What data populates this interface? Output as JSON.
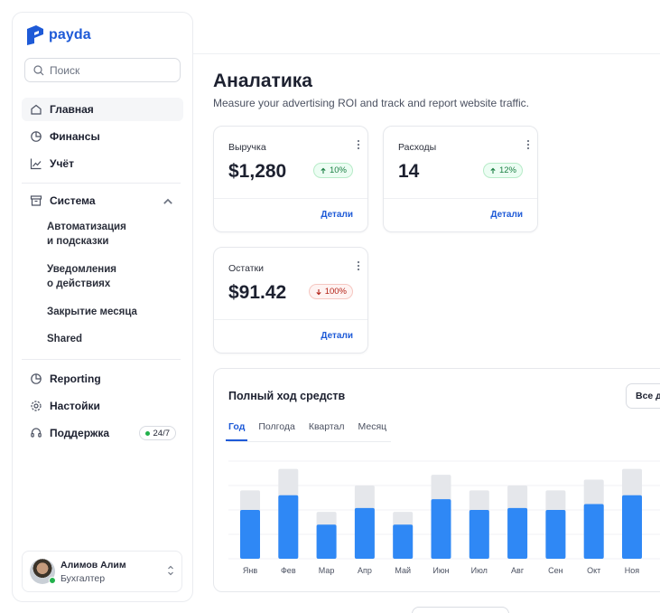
{
  "app": {
    "logo_text": "payda",
    "brand_color": "#1e5ad7"
  },
  "search": {
    "placeholder": "Поиск"
  },
  "sidebar": {
    "items": [
      {
        "label": "Главная",
        "icon": "home-icon",
        "active": true
      },
      {
        "label": "Финансы",
        "icon": "pie-chart-icon"
      },
      {
        "label": "Учёт",
        "icon": "line-chart-icon"
      },
      {
        "label": "Система",
        "icon": "archive-icon",
        "expanded": true
      }
    ],
    "subitems": [
      {
        "label": "Автоматизация\nи подсказки"
      },
      {
        "label": "Уведомления\nо действиях"
      },
      {
        "label": "Закрытие месяца"
      },
      {
        "label": "Shared"
      }
    ],
    "bottom_items": [
      {
        "label": "Reporting",
        "icon": "pie-chart-icon"
      },
      {
        "label": "Настойки",
        "icon": "gear-icon"
      },
      {
        "label": "Поддержка",
        "icon": "headset-icon",
        "badge": "24/7"
      }
    ]
  },
  "user": {
    "name": "Алимов Алим",
    "role": "Бухгалтер",
    "status": "online"
  },
  "main": {
    "title": "Аналатика",
    "subtitle": "Measure your advertising ROI and track and report website traffic."
  },
  "cards": [
    {
      "label": "Выручка",
      "value": "$1,280",
      "change": "10%",
      "direction": "up",
      "link": "Детали"
    },
    {
      "label": "Расходы",
      "value": "14",
      "change": "12%",
      "direction": "up",
      "link": "Детали"
    },
    {
      "label": "Остатки",
      "value": "$91.42",
      "change": "100%",
      "direction": "down",
      "link": "Детали"
    }
  ],
  "cashflow": {
    "title": "Полный ход средств",
    "filter_label": "Все де",
    "tabs": [
      "Год",
      "Полгода",
      "Квартал",
      "Месяц"
    ],
    "active_tab": "Год"
  },
  "chart_data": {
    "type": "bar",
    "categories": [
      "Янв",
      "Фев",
      "Мар",
      "Апр",
      "Май",
      "Июн",
      "Июл",
      "Авг",
      "Сен",
      "Окт",
      "Ноя"
    ],
    "series": [
      {
        "values": [
          50,
          65,
          35,
          52,
          35,
          61,
          50,
          52,
          50,
          56,
          65
        ],
        "color": "#2f88f5"
      },
      {
        "values": [
          70,
          92,
          48,
          75,
          48,
          86,
          70,
          75,
          70,
          81,
          92
        ],
        "color": "#e5e7eb"
      }
    ],
    "ylim": [
      0,
      100
    ],
    "grid": true
  }
}
